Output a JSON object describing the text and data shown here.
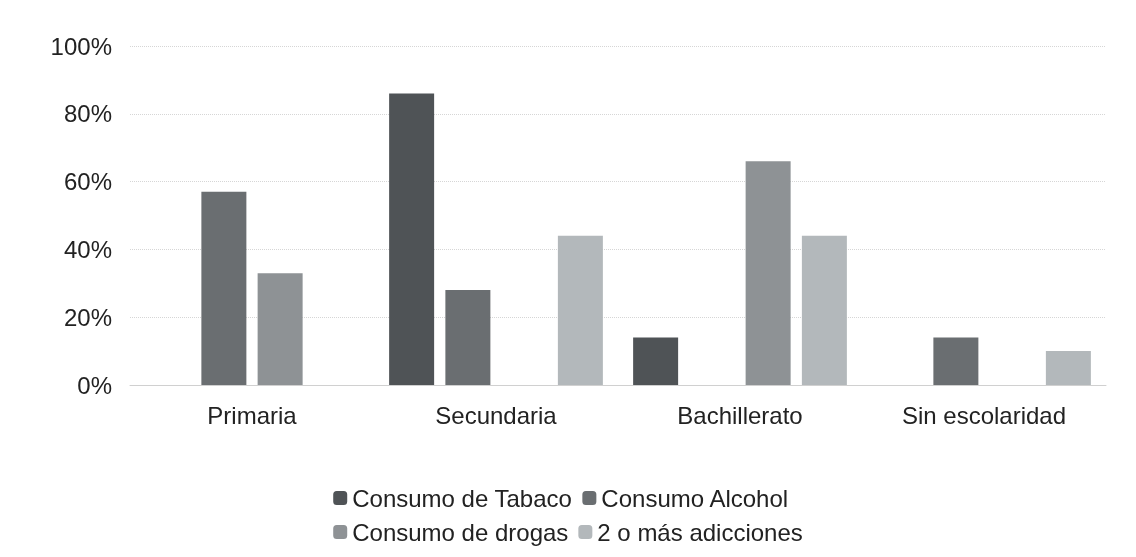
{
  "chart_data": {
    "type": "bar",
    "categories": [
      "Primaria",
      "Secundaria",
      "Bachillerato",
      "Sin escolaridad"
    ],
    "series": [
      {
        "name": "Consumo de Tabaco",
        "color": "#4f5356",
        "values": [
          0,
          86,
          14,
          0
        ]
      },
      {
        "name": "Consumo Alcohol",
        "color": "#6a6e71",
        "values": [
          57,
          28,
          0,
          14
        ]
      },
      {
        "name": "Consumo de drogas",
        "color": "#8e9295",
        "values": [
          33,
          0,
          66,
          0
        ]
      },
      {
        "name": "2 o más adicciones",
        "color": "#b3b8bb",
        "values": [
          0,
          44,
          44,
          10
        ]
      }
    ],
    "ylim": [
      0,
      100
    ],
    "yticks": [
      {
        "value": 0,
        "label": "0%"
      },
      {
        "value": 20,
        "label": "20%"
      },
      {
        "value": 40,
        "label": "40%"
      },
      {
        "value": 60,
        "label": "60%"
      },
      {
        "value": 80,
        "label": "80%"
      },
      {
        "value": 100,
        "label": "100%"
      }
    ],
    "grid": "y",
    "legend": "bottom"
  }
}
